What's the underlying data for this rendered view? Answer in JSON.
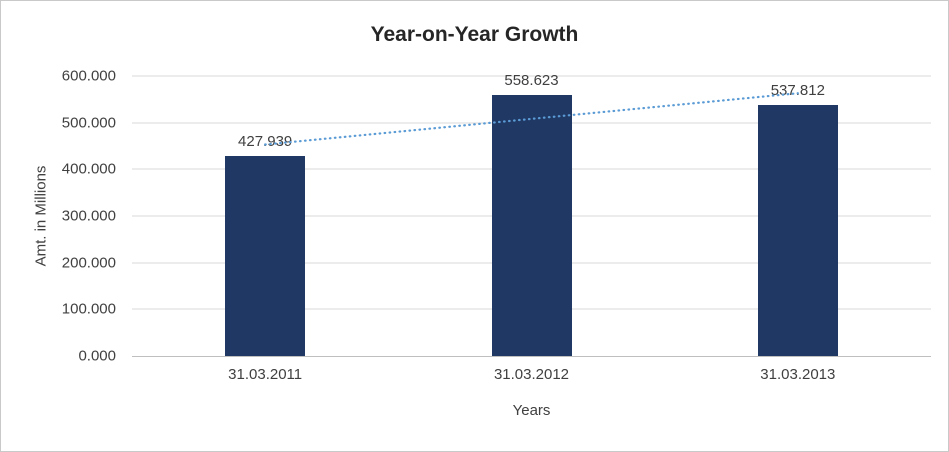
{
  "chart_data": {
    "type": "bar",
    "title": "Year-on-Year Growth",
    "categories": [
      "31.03.2011",
      "31.03.2012",
      "31.03.2013"
    ],
    "values": [
      427.939,
      558.623,
      537.812
    ],
    "value_labels": [
      "427.939",
      "558.623",
      "537.812"
    ],
    "xlabel": "Years",
    "ylabel": "Amt. in Millions",
    "ylim": [
      0,
      600
    ],
    "ytick_step": 100,
    "ytick_labels": [
      "0.000",
      "100.000",
      "200.000",
      "300.000",
      "400.000",
      "500.000",
      "600.000"
    ],
    "grid": true,
    "legend": "none",
    "bar_color": "#1f3864",
    "trendline": {
      "type": "linear",
      "style": "dotted",
      "color": "#5b9bd5"
    }
  }
}
